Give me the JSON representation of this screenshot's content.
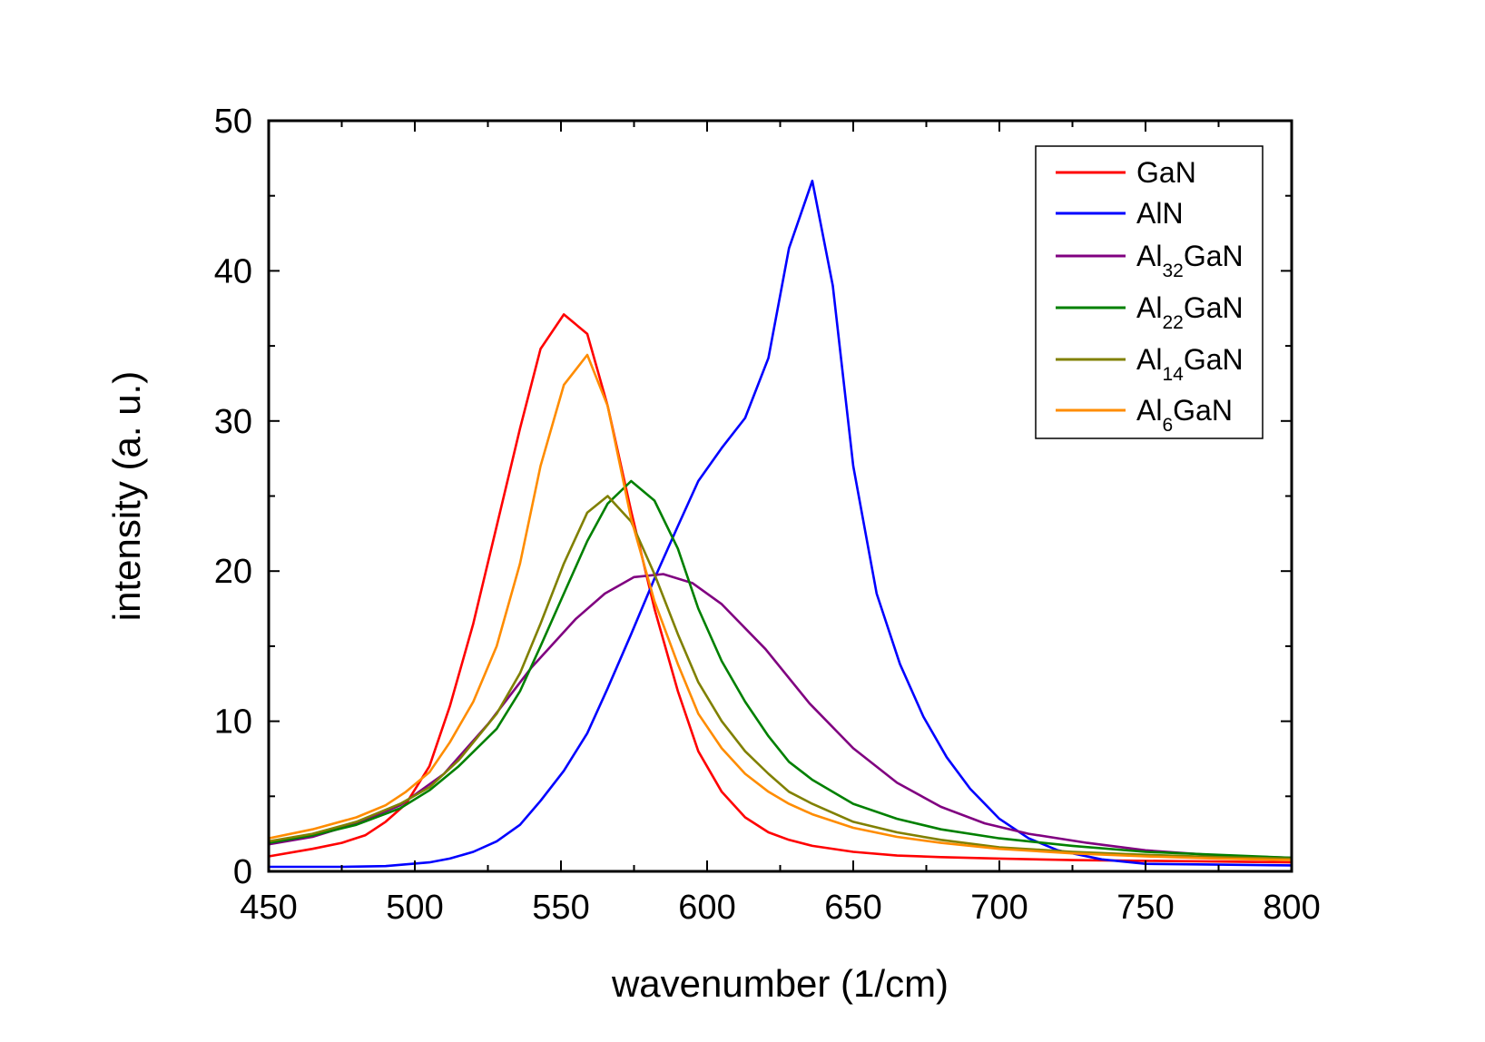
{
  "chart_data": {
    "type": "line",
    "xlabel": "wavenumber (1/cm)",
    "ylabel": "intensity (a. u.)",
    "xlim": [
      450,
      800
    ],
    "ylim": [
      0,
      50
    ],
    "x_ticks": [
      450,
      500,
      550,
      600,
      650,
      700,
      750,
      800
    ],
    "y_ticks": [
      0,
      10,
      20,
      30,
      40,
      50
    ],
    "x_tick_labels": [
      "450",
      "500",
      "550",
      "600",
      "650",
      "700",
      "750",
      "800"
    ],
    "y_tick_labels": [
      "0",
      "10",
      "20",
      "30",
      "40",
      "50"
    ],
    "grid": false,
    "legend_position": "top-right",
    "series": [
      {
        "name": "GaN",
        "label_main": "GaN",
        "label_sub": "",
        "label_tail": "",
        "color": "#ff0000",
        "x": [
          450,
          465,
          475,
          483,
          490,
          497,
          505,
          512,
          520,
          528,
          536,
          543,
          551,
          559,
          566,
          574,
          582,
          590,
          597,
          605,
          613,
          621,
          628,
          636,
          650,
          665,
          680,
          700,
          725,
          750,
          775,
          800
        ],
        "y": [
          1.0,
          1.5,
          1.9,
          2.4,
          3.3,
          4.5,
          7.0,
          11.0,
          16.5,
          23.0,
          29.5,
          34.8,
          37.1,
          35.8,
          31.0,
          24.0,
          17.5,
          12.0,
          8.0,
          5.3,
          3.6,
          2.6,
          2.1,
          1.7,
          1.3,
          1.05,
          0.95,
          0.85,
          0.75,
          0.7,
          0.65,
          0.6
        ]
      },
      {
        "name": "AlN",
        "label_main": "AlN",
        "label_sub": "",
        "label_tail": "",
        "color": "#0000ff",
        "x": [
          450,
          475,
          490,
          505,
          512,
          520,
          528,
          536,
          543,
          551,
          559,
          566,
          574,
          582,
          590,
          597,
          605,
          613,
          621,
          628,
          636,
          643,
          650,
          658,
          666,
          674,
          682,
          690,
          700,
          710,
          720,
          735,
          750,
          775,
          800
        ],
        "y": [
          0.3,
          0.3,
          0.35,
          0.6,
          0.85,
          1.3,
          2.0,
          3.1,
          4.7,
          6.7,
          9.2,
          12.2,
          15.8,
          19.5,
          23.0,
          26.0,
          28.2,
          30.2,
          34.2,
          41.5,
          46.0,
          39.0,
          27.0,
          18.5,
          13.8,
          10.3,
          7.6,
          5.5,
          3.5,
          2.2,
          1.4,
          0.8,
          0.5,
          0.45,
          0.4
        ]
      },
      {
        "name": "Al32GaN",
        "label_main": "Al",
        "label_sub": "32",
        "label_tail": "GaN",
        "color": "#800080",
        "x": [
          450,
          465,
          480,
          495,
          510,
          525,
          540,
          555,
          565,
          575,
          585,
          595,
          605,
          620,
          635,
          650,
          665,
          680,
          695,
          710,
          730,
          750,
          775,
          800
        ],
        "y": [
          1.8,
          2.3,
          3.2,
          4.4,
          6.5,
          9.8,
          13.6,
          16.8,
          18.5,
          19.6,
          19.8,
          19.2,
          17.8,
          14.8,
          11.2,
          8.2,
          5.9,
          4.3,
          3.2,
          2.5,
          1.9,
          1.4,
          1.05,
          0.9
        ]
      },
      {
        "name": "Al22GaN",
        "label_main": "Al",
        "label_sub": "22",
        "label_tail": "GaN",
        "color": "#008000",
        "x": [
          450,
          465,
          480,
          495,
          505,
          515,
          528,
          536,
          543,
          551,
          559,
          566,
          574,
          582,
          590,
          597,
          605,
          613,
          621,
          628,
          636,
          650,
          665,
          680,
          700,
          725,
          750,
          775,
          800
        ],
        "y": [
          1.9,
          2.4,
          3.1,
          4.2,
          5.4,
          7.0,
          9.5,
          12.0,
          15.0,
          18.5,
          22.0,
          24.5,
          26.0,
          24.7,
          21.5,
          17.5,
          14.0,
          11.3,
          9.0,
          7.3,
          6.1,
          4.5,
          3.5,
          2.8,
          2.2,
          1.7,
          1.3,
          1.1,
          0.9
        ]
      },
      {
        "name": "Al14GaN",
        "label_main": "Al",
        "label_sub": "14",
        "label_tail": "GaN",
        "color": "#808000",
        "x": [
          450,
          465,
          480,
          495,
          505,
          515,
          528,
          536,
          543,
          551,
          559,
          566,
          574,
          582,
          590,
          597,
          605,
          613,
          621,
          628,
          636,
          650,
          665,
          680,
          700,
          725,
          750,
          775,
          800
        ],
        "y": [
          2.0,
          2.5,
          3.3,
          4.5,
          5.6,
          7.4,
          10.5,
          13.2,
          16.5,
          20.5,
          23.9,
          25.0,
          23.3,
          19.8,
          15.8,
          12.6,
          10.0,
          8.0,
          6.5,
          5.3,
          4.5,
          3.3,
          2.6,
          2.1,
          1.6,
          1.3,
          1.1,
          0.95,
          0.85
        ]
      },
      {
        "name": "Al6GaN",
        "label_main": "Al",
        "label_sub": "6",
        "label_tail": "GaN",
        "color": "#ff8c00",
        "x": [
          450,
          465,
          480,
          490,
          497,
          505,
          512,
          520,
          528,
          536,
          543,
          551,
          559,
          566,
          574,
          582,
          590,
          597,
          605,
          613,
          621,
          628,
          636,
          650,
          665,
          680,
          700,
          725,
          750,
          775,
          800
        ],
        "y": [
          2.2,
          2.8,
          3.6,
          4.4,
          5.3,
          6.6,
          8.6,
          11.3,
          15.0,
          20.5,
          27.0,
          32.4,
          34.4,
          31.0,
          23.5,
          18.0,
          13.8,
          10.5,
          8.2,
          6.5,
          5.3,
          4.5,
          3.8,
          2.9,
          2.3,
          1.9,
          1.5,
          1.2,
          1.0,
          0.85,
          0.75
        ]
      }
    ]
  }
}
